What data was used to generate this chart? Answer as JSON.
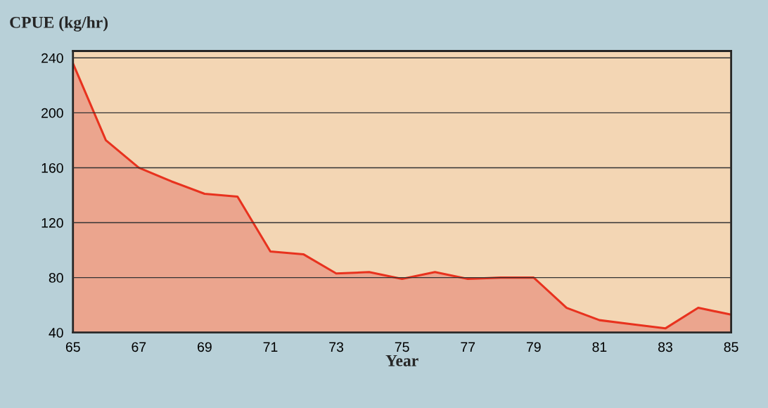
{
  "chart_data": {
    "type": "area",
    "ylabel": "CPUE (kg/hr)",
    "xlabel": "Year",
    "x": [
      65,
      66,
      67,
      68,
      69,
      70,
      71,
      72,
      73,
      74,
      75,
      76,
      77,
      78,
      79,
      80,
      81,
      82,
      83,
      84,
      85
    ],
    "series": [
      {
        "color": "#e8321e",
        "values": [
          236,
          180,
          160,
          150,
          141,
          139,
          99,
          97,
          83,
          84,
          79,
          84,
          79,
          80,
          80,
          58,
          49,
          46,
          43,
          58,
          53
        ]
      }
    ],
    "xlim": [
      65,
      85
    ],
    "xticks": [
      65,
      67,
      69,
      71,
      73,
      75,
      77,
      79,
      81,
      83,
      85
    ],
    "ylim": [
      40,
      245
    ],
    "yticks": [
      40,
      80,
      120,
      160,
      200,
      240
    ],
    "grid": "y"
  }
}
